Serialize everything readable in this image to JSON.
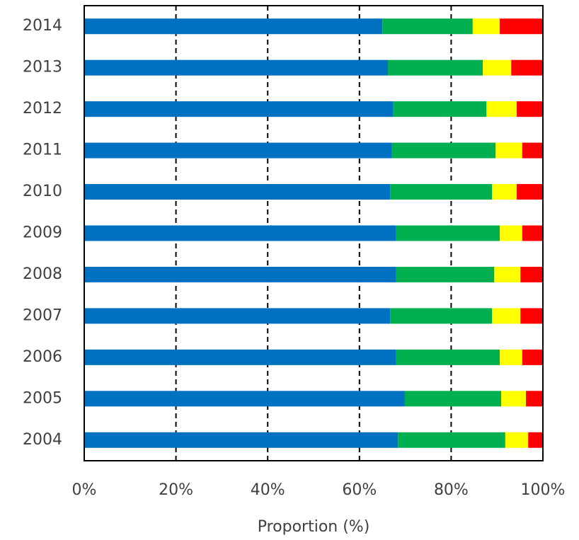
{
  "chart_data": {
    "type": "stacked-bar-horizontal",
    "x_label": "Proportion (%)",
    "categories": [
      "2014",
      "2013",
      "2012",
      "2011",
      "2010",
      "2009",
      "2008",
      "2007",
      "2006",
      "2005",
      "2004"
    ],
    "series": [
      {
        "color": "#0070c0",
        "values": [
          65.0,
          66.2,
          67.4,
          67.1,
          66.7,
          67.9,
          67.9,
          66.7,
          67.9,
          69.9,
          68.4
        ]
      },
      {
        "color": "#00b050",
        "values": [
          19.7,
          20.7,
          20.3,
          22.6,
          22.2,
          22.7,
          21.5,
          22.2,
          22.7,
          21.0,
          23.4
        ]
      },
      {
        "color": "#ffff00",
        "values": [
          5.9,
          6.2,
          6.6,
          5.8,
          5.4,
          4.9,
          5.7,
          6.2,
          4.9,
          5.4,
          5.0
        ]
      },
      {
        "color": "#ff0000",
        "values": [
          9.4,
          6.9,
          5.7,
          4.5,
          5.7,
          4.5,
          4.9,
          4.9,
          4.5,
          3.7,
          3.2
        ]
      }
    ],
    "xlim": [
      0,
      100
    ],
    "xticks": [
      {
        "value": 0,
        "label": "0%"
      },
      {
        "value": 20,
        "label": "20%"
      },
      {
        "value": 40,
        "label": "40%"
      },
      {
        "value": 60,
        "label": "60%"
      },
      {
        "value": 80,
        "label": "80%"
      },
      {
        "value": 100,
        "label": "100%"
      }
    ],
    "grid": true
  }
}
